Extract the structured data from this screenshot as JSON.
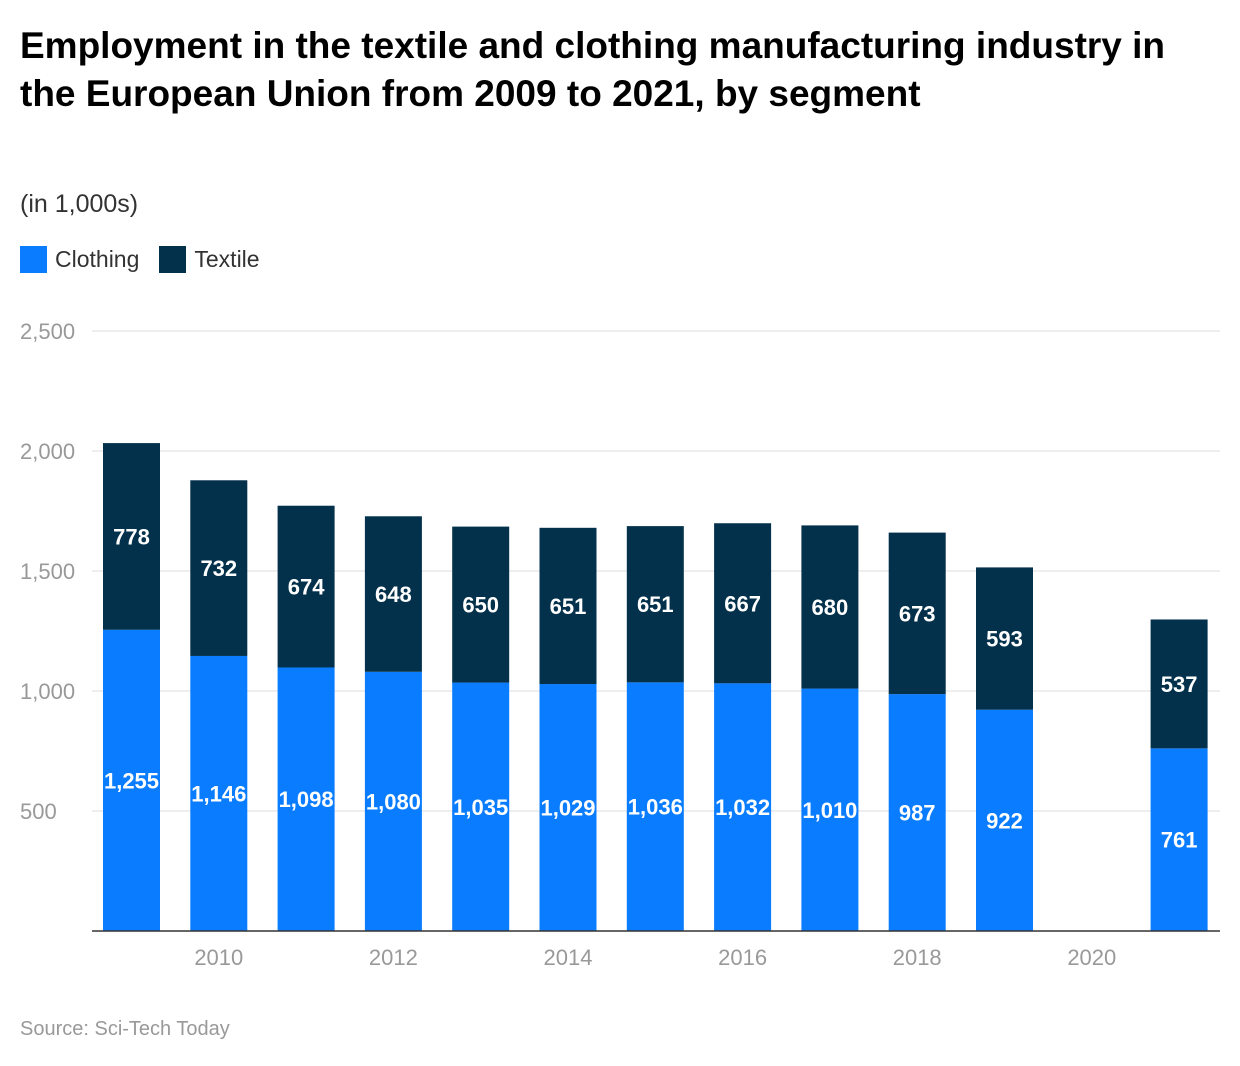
{
  "title": "Employment in the textile and clothing manufacturing industry in the European Union from 2009 to 2021, by segment",
  "subtitle": "(in 1,000s)",
  "source": "Source: Sci-Tech Today",
  "colors": {
    "clothing": "#0a7cff",
    "textile": "#03314b",
    "grid": "#dddddd",
    "axis": "#333333",
    "tick_text": "#999999"
  },
  "chart_data": {
    "type": "bar",
    "stacked": true,
    "title": "Employment in the textile and clothing manufacturing industry in the European Union from 2009 to 2021, by segment",
    "subtitle": "(in 1,000s)",
    "x": [
      2009,
      2010,
      2011,
      2012,
      2013,
      2014,
      2015,
      2016,
      2017,
      2018,
      2019,
      2020,
      2021
    ],
    "x_tick_labels": [
      "2010",
      "2012",
      "2014",
      "2016",
      "2018",
      "2020"
    ],
    "series": [
      {
        "name": "Clothing",
        "color": "#0a7cff",
        "values": [
          1255,
          1146,
          1098,
          1080,
          1035,
          1029,
          1036,
          1032,
          1010,
          987,
          922,
          null,
          761
        ],
        "labels": [
          "1,255",
          "1,146",
          "1,098",
          "1,080",
          "1,035",
          "1,029",
          "1,036",
          "1,032",
          "1,010",
          "987",
          "922",
          "",
          "761"
        ]
      },
      {
        "name": "Textile",
        "color": "#03314b",
        "values": [
          778,
          732,
          674,
          648,
          650,
          651,
          651,
          667,
          680,
          673,
          593,
          null,
          537
        ],
        "labels": [
          "778",
          "732",
          "674",
          "648",
          "650",
          "651",
          "651",
          "667",
          "680",
          "673",
          "593",
          "",
          "537"
        ]
      }
    ],
    "ylim": [
      0,
      2500
    ],
    "y_ticks": [
      500,
      1000,
      1500,
      2000,
      2500
    ],
    "y_tick_labels": [
      "500",
      "1,000",
      "1,500",
      "2,000",
      "2,500"
    ],
    "grid": true,
    "legend": "top-left"
  }
}
